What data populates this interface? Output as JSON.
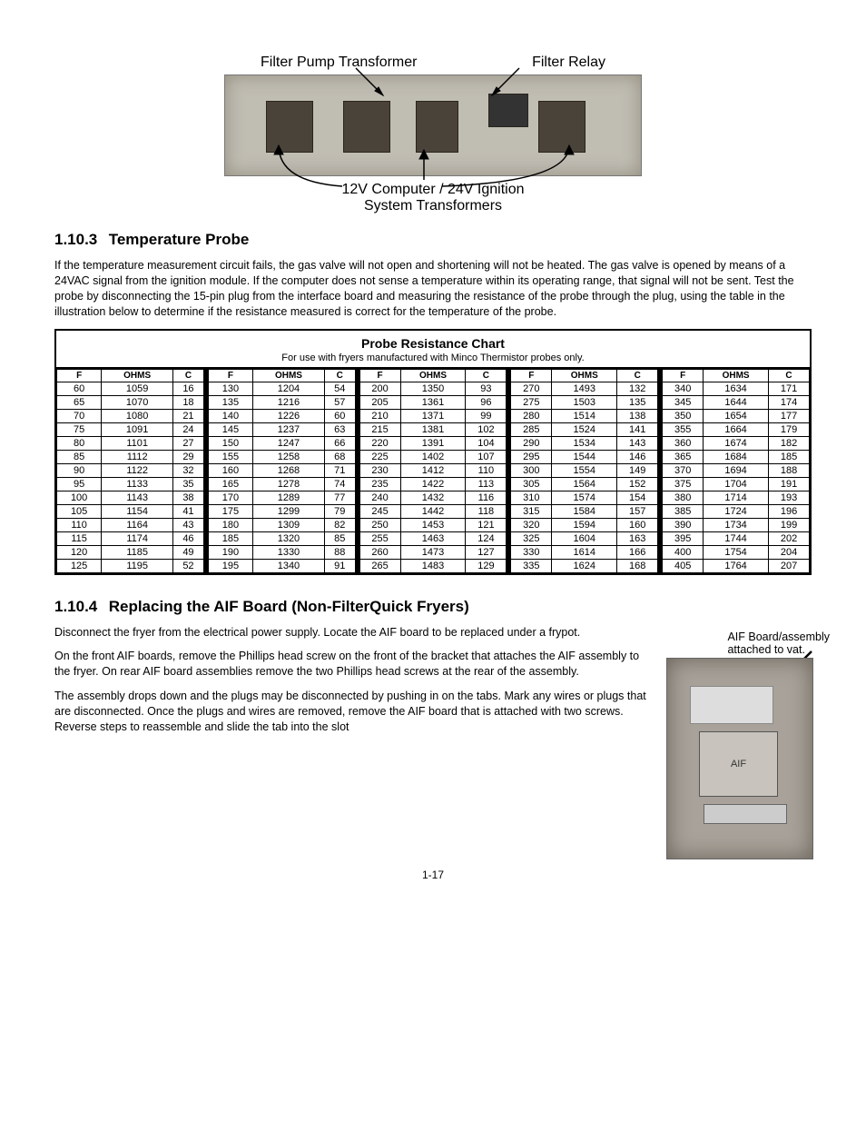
{
  "figure1": {
    "label_left": "Filter Pump Transformer",
    "label_right": "Filter Relay",
    "label_bottom_line1": "12V Computer / 24V Ignition",
    "label_bottom_line2": "System Transformers"
  },
  "section_probe": {
    "number": "1.10.3",
    "title": "Temperature Probe",
    "para": "If the temperature measurement circuit fails, the gas valve will not open and shortening will not be heated. The gas valve is opened by means of a 24VAC signal from the ignition module. If the computer does not sense a temperature within its operating range, that signal will not be sent. Test the probe by disconnecting the 15-pin plug from the interface board and measuring the resistance of the probe through the plug, using the table in the illustration below to determine if the resistance measured is correct for the temperature of the probe."
  },
  "probe_chart": {
    "title": "Probe Resistance Chart",
    "subtitle": "For use with fryers manufactured with Minco Thermistor probes only.",
    "headers": [
      "F",
      "OHMS",
      "C"
    ],
    "blocks": [
      [
        [
          60,
          1059,
          16
        ],
        [
          65,
          1070,
          18
        ],
        [
          70,
          1080,
          21
        ],
        [
          75,
          1091,
          24
        ],
        [
          80,
          1101,
          27
        ],
        [
          85,
          1112,
          29
        ],
        [
          90,
          1122,
          32
        ],
        [
          95,
          1133,
          35
        ],
        [
          100,
          1143,
          38
        ],
        [
          105,
          1154,
          41
        ],
        [
          110,
          1164,
          43
        ],
        [
          115,
          1174,
          46
        ],
        [
          120,
          1185,
          49
        ],
        [
          125,
          1195,
          52
        ]
      ],
      [
        [
          130,
          1204,
          54
        ],
        [
          135,
          1216,
          57
        ],
        [
          140,
          1226,
          60
        ],
        [
          145,
          1237,
          63
        ],
        [
          150,
          1247,
          66
        ],
        [
          155,
          1258,
          68
        ],
        [
          160,
          1268,
          71
        ],
        [
          165,
          1278,
          74
        ],
        [
          170,
          1289,
          77
        ],
        [
          175,
          1299,
          79
        ],
        [
          180,
          1309,
          82
        ],
        [
          185,
          1320,
          85
        ],
        [
          190,
          1330,
          88
        ],
        [
          195,
          1340,
          91
        ]
      ],
      [
        [
          200,
          1350,
          93
        ],
        [
          205,
          1361,
          96
        ],
        [
          210,
          1371,
          99
        ],
        [
          215,
          1381,
          102
        ],
        [
          220,
          1391,
          104
        ],
        [
          225,
          1402,
          107
        ],
        [
          230,
          1412,
          110
        ],
        [
          235,
          1422,
          113
        ],
        [
          240,
          1432,
          116
        ],
        [
          245,
          1442,
          118
        ],
        [
          250,
          1453,
          121
        ],
        [
          255,
          1463,
          124
        ],
        [
          260,
          1473,
          127
        ],
        [
          265,
          1483,
          129
        ]
      ],
      [
        [
          270,
          1493,
          132
        ],
        [
          275,
          1503,
          135
        ],
        [
          280,
          1514,
          138
        ],
        [
          285,
          1524,
          141
        ],
        [
          290,
          1534,
          143
        ],
        [
          295,
          1544,
          146
        ],
        [
          300,
          1554,
          149
        ],
        [
          305,
          1564,
          152
        ],
        [
          310,
          1574,
          154
        ],
        [
          315,
          1584,
          157
        ],
        [
          320,
          1594,
          160
        ],
        [
          325,
          1604,
          163
        ],
        [
          330,
          1614,
          166
        ],
        [
          335,
          1624,
          168
        ]
      ],
      [
        [
          340,
          1634,
          171
        ],
        [
          345,
          1644,
          174
        ],
        [
          350,
          1654,
          177
        ],
        [
          355,
          1664,
          179
        ],
        [
          360,
          1674,
          182
        ],
        [
          365,
          1684,
          185
        ],
        [
          370,
          1694,
          188
        ],
        [
          375,
          1704,
          191
        ],
        [
          380,
          1714,
          193
        ],
        [
          385,
          1724,
          196
        ],
        [
          390,
          1734,
          199
        ],
        [
          395,
          1744,
          202
        ],
        [
          400,
          1754,
          204
        ],
        [
          405,
          1764,
          207
        ]
      ]
    ]
  },
  "section_aif": {
    "number": "1.10.4",
    "title": "Replacing the AIF Board (Non-FilterQuick Fryers)",
    "p1": "Disconnect the fryer from the electrical power supply. Locate the AIF board to be replaced under a frypot.",
    "p2": "On the front AIF boards, remove the Phillips head screw on the front of the bracket that attaches the AIF assembly to the fryer. On rear AIF board assemblies remove the two Phillips head screws at the rear of the assembly.",
    "p3": "The assembly drops down and the plugs may be disconnected by pushing in on the tabs. Mark any wires or plugs that are disconnected. Once the plugs and wires are removed, remove the AIF board that is attached with two screws. Reverse steps to reassemble and slide the tab into the slot",
    "fig2_label": "AIF Board/assembly\nattached to vat.",
    "aif_inner": "AIF"
  },
  "page_number": "1-17"
}
